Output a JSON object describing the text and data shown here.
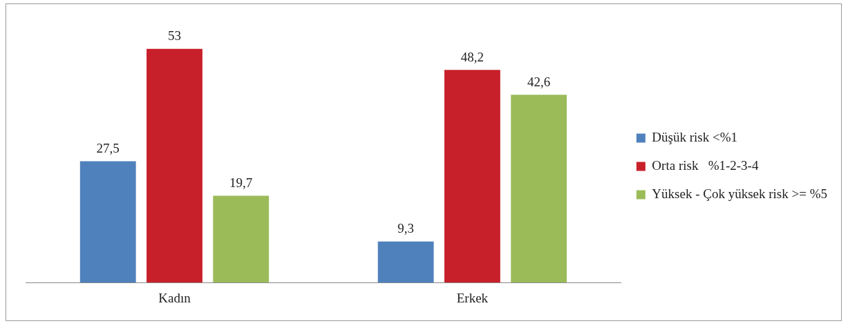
{
  "chart_data": {
    "type": "bar",
    "categories": [
      "Kadın",
      "Erkek"
    ],
    "series": [
      {
        "name": "Düşük risk <%1",
        "color": "#4f81bd",
        "values": [
          27.5,
          9.3
        ],
        "value_labels": [
          "27,5",
          "9,3"
        ]
      },
      {
        "name": "Orta risk   %1-2-3-4",
        "color": "#c8202a",
        "values": [
          53,
          48.2
        ],
        "value_labels": [
          "53",
          "48,2"
        ]
      },
      {
        "name": "Yüksek - Çok yüksek risk >= %5",
        "color": "#9bbb59",
        "values": [
          19.7,
          42.6
        ],
        "value_labels": [
          "19,7",
          "42,6"
        ]
      }
    ],
    "legend": "right"
  }
}
